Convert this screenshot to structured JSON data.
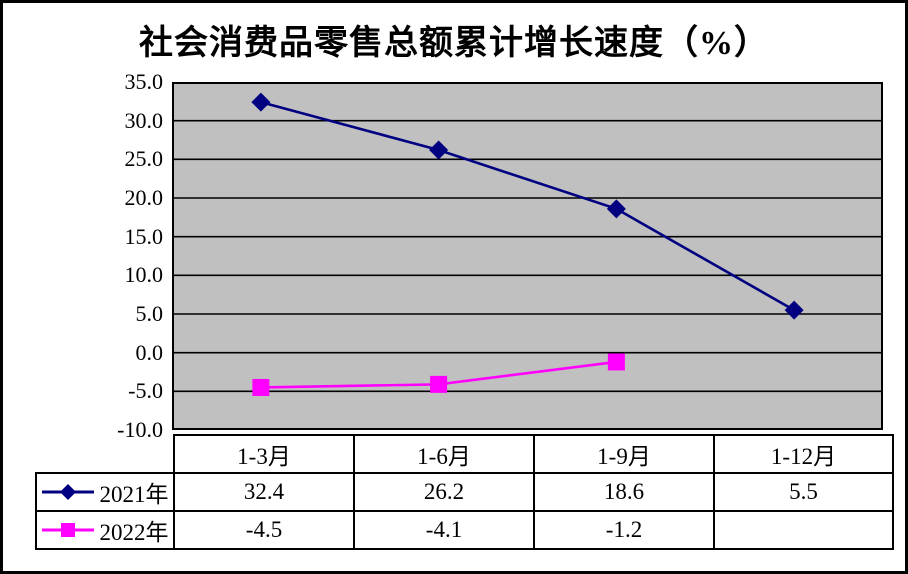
{
  "title": "社会消费品零售总额累计增长速度（%）",
  "chart_data": {
    "type": "line",
    "title": "社会消费品零售总额累计增长速度（%）",
    "categories": [
      "1-3月",
      "1-6月",
      "1-9月",
      "1-12月"
    ],
    "series": [
      {
        "name": "2021年",
        "color": "#000080",
        "marker": "diamond",
        "values": [
          32.4,
          26.2,
          18.6,
          5.5
        ]
      },
      {
        "name": "2022年",
        "color": "#FF00FF",
        "marker": "square",
        "values": [
          -4.5,
          -4.1,
          -1.2,
          null
        ]
      }
    ],
    "xlabel": "",
    "ylabel": "",
    "ylim": [
      -10,
      35
    ],
    "ytick_step": 5,
    "ytick_labels": [
      "35.0",
      "30.0",
      "25.0",
      "20.0",
      "15.0",
      "10.0",
      "5.0",
      "0.0",
      "-5.0",
      "-10.0"
    ],
    "grid": "horizontal",
    "plot_bg": "#C0C0C0",
    "gridline_color": "#000000",
    "legend_position": "table-left-keys"
  },
  "table": {
    "column_headers": [
      "1-3月",
      "1-6月",
      "1-9月",
      "1-12月"
    ],
    "rows": [
      {
        "label": "2021年",
        "cells": [
          "32.4",
          "26.2",
          "18.6",
          "5.5"
        ]
      },
      {
        "label": "2022年",
        "cells": [
          "-4.5",
          "-4.1",
          "-1.2",
          ""
        ]
      }
    ]
  }
}
